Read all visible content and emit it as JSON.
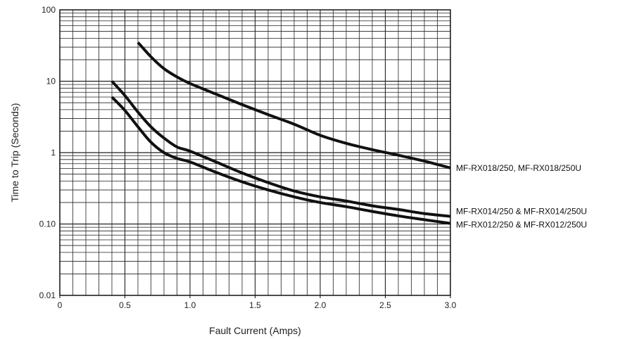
{
  "chart_data": {
    "type": "line",
    "xlabel": "Fault Current (Amps)",
    "ylabel": "Time to Trip (Seconds)",
    "xlim": [
      0,
      3.0
    ],
    "ylim": [
      0.01,
      100
    ],
    "yscale": "log",
    "grid": true,
    "x_ticks": [
      {
        "value": 0,
        "label": "0"
      },
      {
        "value": 0.5,
        "label": "0.5"
      },
      {
        "value": 1.0,
        "label": "1.0"
      },
      {
        "value": 1.5,
        "label": "1.5"
      },
      {
        "value": 2.0,
        "label": "2.0"
      },
      {
        "value": 2.5,
        "label": "2.5"
      },
      {
        "value": 3.0,
        "label": "3.0"
      }
    ],
    "y_ticks": [
      {
        "value": 0.01,
        "label": "0.01"
      },
      {
        "value": 0.1,
        "label": "0.10"
      },
      {
        "value": 1,
        "label": "1"
      },
      {
        "value": 10,
        "label": "10"
      },
      {
        "value": 100,
        "label": "100"
      }
    ],
    "series": [
      {
        "name": "MF-RX018/250, MF-RX018/250U",
        "x": [
          0.6,
          0.7,
          0.8,
          0.9,
          1.0,
          1.2,
          1.4,
          1.6,
          1.8,
          2.0,
          2.2,
          2.4,
          2.6,
          2.8,
          3.0
        ],
        "y": [
          35,
          22,
          15,
          11.5,
          9.3,
          6.6,
          4.7,
          3.4,
          2.5,
          1.75,
          1.35,
          1.1,
          0.92,
          0.76,
          0.61
        ]
      },
      {
        "name": "MF-RX014/250 & MF-RX014/250U",
        "x": [
          0.4,
          0.5,
          0.6,
          0.7,
          0.8,
          0.9,
          1.0,
          1.2,
          1.4,
          1.6,
          1.8,
          2.0,
          2.2,
          2.4,
          2.6,
          2.8,
          3.0
        ],
        "y": [
          10,
          6.3,
          3.7,
          2.3,
          1.6,
          1.2,
          1.05,
          0.74,
          0.52,
          0.38,
          0.29,
          0.24,
          0.21,
          0.18,
          0.16,
          0.14,
          0.128
        ]
      },
      {
        "name": "MF-RX012/250 & MF-RX012/250U",
        "x": [
          0.4,
          0.5,
          0.6,
          0.7,
          0.8,
          0.9,
          1.0,
          1.2,
          1.4,
          1.6,
          1.8,
          2.0,
          2.2,
          2.4,
          2.6,
          2.8,
          3.0
        ],
        "y": [
          6.0,
          3.9,
          2.3,
          1.4,
          1.0,
          0.83,
          0.74,
          0.53,
          0.39,
          0.3,
          0.24,
          0.2,
          0.175,
          0.15,
          0.13,
          0.115,
          0.102
        ]
      }
    ],
    "colors": {
      "line": "#111111",
      "grid": "#222222",
      "background": "#ffffff"
    }
  }
}
